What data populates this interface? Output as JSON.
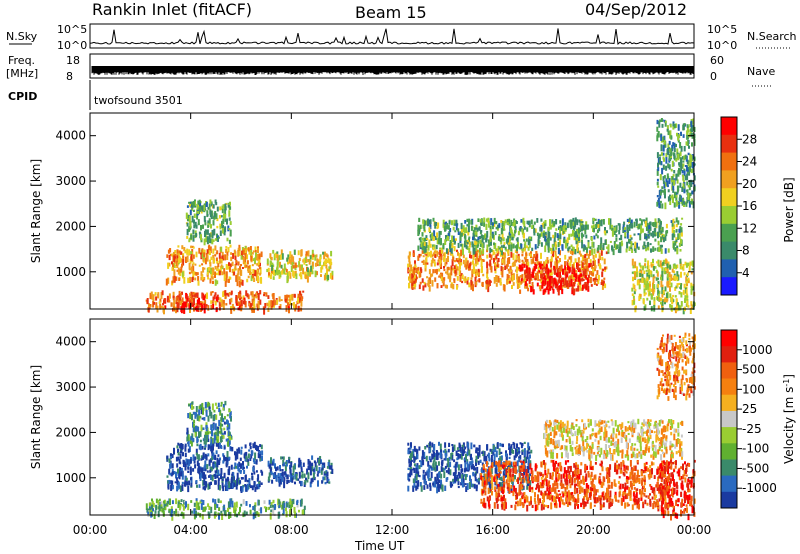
{
  "header": {
    "station": "Rankin Inlet (fitACF)",
    "beam": "Beam 15",
    "date": "04/Sep/2012"
  },
  "panels": {
    "nsky": {
      "left_label": "N.Sky",
      "right_label": "N.Search",
      "top_tick": "10^5",
      "bottom_tick": "10^0",
      "right_top_tick": "10^5",
      "right_bottom_tick": "10^0"
    },
    "freq": {
      "label_line1": "Freq.",
      "label_line2": "[MHz]",
      "right_label": "Nave",
      "left_top_tick": "18",
      "left_bottom_tick": "8",
      "right_top_tick": "60",
      "right_bottom_tick": "0"
    },
    "cpid": {
      "label": "CPID",
      "value": "twofsound 3501"
    }
  },
  "colors": {
    "power_scale": [
      "#1a1aff",
      "#2060b0",
      "#3a8a6a",
      "#4aa050",
      "#9acd32",
      "#f0d020",
      "#f0a020",
      "#f07010",
      "#e83010",
      "#ff0000"
    ],
    "velocity_scale": [
      "#1a3aa0",
      "#2a6ac0",
      "#3a8a6a",
      "#60b030",
      "#9acd32",
      "#c8c8c8",
      "#f5b020",
      "#f58010",
      "#f06010",
      "#e02010",
      "#ff0000"
    ]
  },
  "chart_data": [
    {
      "type": "heatmap",
      "title": "Power",
      "xlabel": "Time UT",
      "ylabel": "Slant Range [km]",
      "x_ticks": [
        "00:00",
        "04:00",
        "08:00",
        "12:00",
        "16:00",
        "20:00",
        "00:00"
      ],
      "y_ticks": [
        "1000",
        "2000",
        "3000",
        "4000"
      ],
      "xlim_hours": [
        0,
        24
      ],
      "ylim_km": [
        180,
        4500
      ],
      "colorbar": {
        "label": "Power [dB]",
        "ticks": [
          "4",
          "8",
          "12",
          "16",
          "20",
          "24",
          "28"
        ],
        "range": [
          0,
          30
        ]
      },
      "regions": [
        {
          "t0": 2.2,
          "t1": 8.5,
          "r0": 200,
          "r1": 600,
          "level": 0.75
        },
        {
          "t0": 3.5,
          "t1": 4.6,
          "r0": 200,
          "r1": 550,
          "level": 0.95
        },
        {
          "t0": 3.0,
          "t1": 6.8,
          "r0": 800,
          "r1": 1600,
          "level": 0.65
        },
        {
          "t0": 3.8,
          "t1": 5.6,
          "r0": 1700,
          "r1": 2600,
          "level": 0.35
        },
        {
          "t0": 7.0,
          "t1": 9.6,
          "r0": 900,
          "r1": 1500,
          "level": 0.55
        },
        {
          "t0": 12.6,
          "t1": 20.5,
          "r0": 700,
          "r1": 1500,
          "level": 0.7
        },
        {
          "t0": 17.0,
          "t1": 19.8,
          "r0": 600,
          "r1": 1200,
          "level": 0.92
        },
        {
          "t0": 13.0,
          "t1": 23.5,
          "r0": 1500,
          "r1": 2200,
          "level": 0.35
        },
        {
          "t0": 21.5,
          "t1": 24.0,
          "r0": 200,
          "r1": 1300,
          "level": 0.5
        },
        {
          "t0": 22.5,
          "t1": 24.0,
          "r0": 2500,
          "r1": 4400,
          "level": 0.3
        }
      ]
    },
    {
      "type": "heatmap",
      "title": "Velocity",
      "xlabel": "Time UT",
      "ylabel": "Slant Range [km]",
      "x_ticks": [
        "00:00",
        "04:00",
        "08:00",
        "12:00",
        "16:00",
        "20:00",
        "00:00"
      ],
      "y_ticks": [
        "1000",
        "2000",
        "3000",
        "4000"
      ],
      "xlim_hours": [
        0,
        24
      ],
      "ylim_km": [
        180,
        4500
      ],
      "colorbar": {
        "label": "Velocity [m s⁻¹]",
        "ticks": [
          "1000",
          "500",
          "100",
          "25",
          "-25",
          "-100",
          "-500",
          "-1000"
        ]
      },
      "regions": [
        {
          "t0": 2.2,
          "t1": 8.5,
          "r0": 200,
          "r1": 550,
          "level": 0.3
        },
        {
          "t0": 3.0,
          "t1": 6.8,
          "r0": 800,
          "r1": 1800,
          "level": 0.05
        },
        {
          "t0": 3.8,
          "t1": 5.6,
          "r0": 1800,
          "r1": 2700,
          "level": 0.25
        },
        {
          "t0": 7.0,
          "t1": 9.6,
          "r0": 900,
          "r1": 1500,
          "level": 0.1
        },
        {
          "t0": 12.6,
          "t1": 17.5,
          "r0": 800,
          "r1": 1800,
          "level": 0.08
        },
        {
          "t0": 15.5,
          "t1": 23.0,
          "r0": 400,
          "r1": 1400,
          "level": 0.8
        },
        {
          "t0": 18.0,
          "t1": 23.5,
          "r0": 1500,
          "r1": 2300,
          "level": 0.55
        },
        {
          "t0": 22.5,
          "t1": 24.0,
          "r0": 200,
          "r1": 1400,
          "level": 0.85
        },
        {
          "t0": 22.5,
          "t1": 24.0,
          "r0": 2800,
          "r1": 4200,
          "level": 0.7
        }
      ]
    }
  ],
  "colorbar_labels": {
    "power": "Power [dB]",
    "velocity_main": "Velocity [m s",
    "velocity_exp": "-1",
    "velocity_close": "]"
  },
  "axis_labels": {
    "time": "Time UT",
    "range_top": "Slant Range [km]",
    "range_bottom": "Slant Range [km]"
  }
}
